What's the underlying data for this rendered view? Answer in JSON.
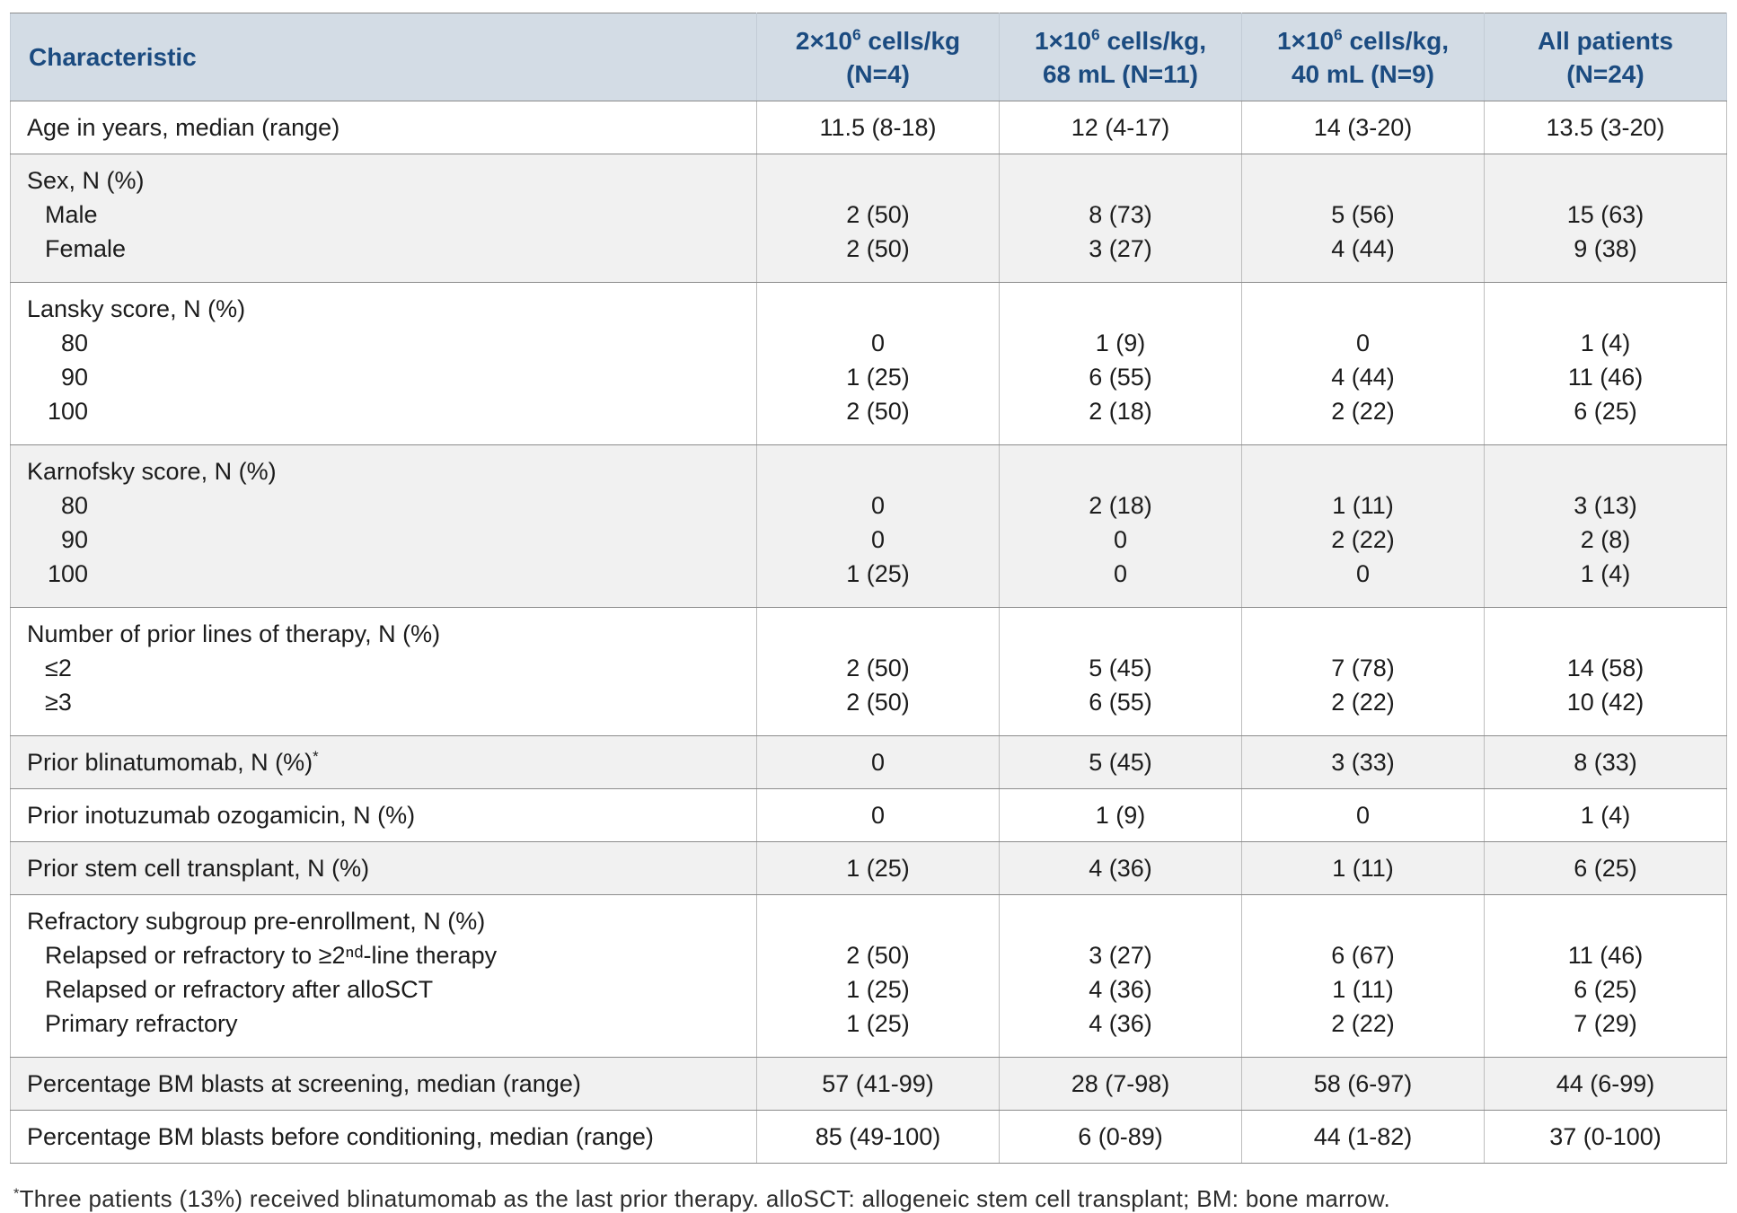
{
  "colors": {
    "header_bg": "#d3dce5",
    "header_text": "#1b4b80",
    "shaded_row_bg": "#f1f1f1",
    "border_dark": "#8c8c8c",
    "border_light": "#bdbdbd"
  },
  "table": {
    "header": {
      "characteristic": "Characteristic",
      "columns": [
        {
          "base": "2×10",
          "sup": "6",
          "rest": " cells/kg",
          "line2": "(N=4)"
        },
        {
          "base": "1×10",
          "sup": "6",
          "rest": " cells/kg,",
          "line2": "68 mL (N=11)"
        },
        {
          "base": "1×10",
          "sup": "6",
          "rest": " cells/kg,",
          "line2": "40 mL (N=9)"
        },
        {
          "base": "All patients",
          "sup": "",
          "rest": "",
          "line2": "(N=24)"
        }
      ]
    },
    "rows": [
      {
        "label": "Age in years, median (range)",
        "shaded": false,
        "values": [
          "11.5 (8-18)",
          "12 (4-17)",
          "14 (3-20)",
          "13.5 (3-20)"
        ]
      },
      {
        "label": "Sex, N (%)",
        "shaded": true,
        "sub": [
          {
            "label": "Male",
            "values": [
              "2 (50)",
              "8 (73)",
              "5 (56)",
              "15 (63)"
            ]
          },
          {
            "label": "Female",
            "values": [
              "2 (50)",
              "3 (27)",
              "4 (44)",
              "9 (38)"
            ]
          }
        ]
      },
      {
        "label": "Lansky score, N (%)",
        "shaded": false,
        "sub": [
          {
            "label": "80",
            "values": [
              "0",
              "1 (9)",
              "0",
              "1 (4)"
            ]
          },
          {
            "label": "90",
            "values": [
              "1 (25)",
              "6 (55)",
              "4 (44)",
              "11 (46)"
            ]
          },
          {
            "label": "100",
            "values": [
              "2 (50)",
              "2 (18)",
              "2 (22)",
              "6 (25)"
            ]
          }
        ]
      },
      {
        "label": "Karnofsky score, N (%)",
        "shaded": true,
        "sub": [
          {
            "label": "80",
            "values": [
              "0",
              "2 (18)",
              "1 (11)",
              "3 (13)"
            ]
          },
          {
            "label": "90",
            "values": [
              "0",
              "0",
              "2 (22)",
              "2 (8)"
            ]
          },
          {
            "label": "100",
            "values": [
              "1 (25)",
              "0",
              "0",
              "1 (4)"
            ]
          }
        ]
      },
      {
        "label": "Number of prior lines of therapy, N (%)",
        "shaded": false,
        "sub": [
          {
            "label": "≤2",
            "values": [
              "2 (50)",
              "5 (45)",
              "7 (78)",
              "14 (58)"
            ]
          },
          {
            "label": "≥3",
            "values": [
              "2 (50)",
              "6 (55)",
              "2 (22)",
              "10 (42)"
            ]
          }
        ]
      },
      {
        "label": "Prior blinatumomab, N (%)",
        "label_sup": "*",
        "shaded": true,
        "values": [
          "0",
          "5 (45)",
          "3 (33)",
          "8 (33)"
        ]
      },
      {
        "label": "Prior inotuzumab ozogamicin, N (%)",
        "shaded": false,
        "values": [
          "0",
          "1 (9)",
          "0",
          "1 (4)"
        ]
      },
      {
        "label": "Prior stem cell transplant, N (%)",
        "shaded": true,
        "values": [
          "1 (25)",
          "4 (36)",
          "1 (11)",
          "6 (25)"
        ]
      },
      {
        "label": "Refractory subgroup pre-enrollment, N (%)",
        "shaded": false,
        "sub": [
          {
            "label": "Relapsed or refractory to ≥2ⁿᵈ-line therapy",
            "values": [
              "2 (50)",
              "3 (27)",
              "6 (67)",
              "11 (46)"
            ]
          },
          {
            "label": "Relapsed or refractory after alloSCT",
            "values": [
              "1 (25)",
              "4 (36)",
              "1 (11)",
              "6 (25)"
            ]
          },
          {
            "label": "Primary refractory",
            "values": [
              "1 (25)",
              "4 (36)",
              "2 (22)",
              "7 (29)"
            ]
          }
        ]
      },
      {
        "label": "Percentage BM blasts at screening, median (range)",
        "shaded": true,
        "values": [
          "57 (41-99)",
          "28 (7-98)",
          "58 (6-97)",
          "44 (6-99)"
        ]
      },
      {
        "label": "Percentage BM blasts before conditioning, median (range)",
        "shaded": false,
        "values": [
          "85 (49-100)",
          "6 (0-89)",
          "44 (1-82)",
          "37 (0-100)"
        ]
      }
    ]
  },
  "footnote": {
    "sup": "*",
    "text": "Three patients (13%) received blinatumomab as the last prior therapy. alloSCT: allogeneic stem cell transplant; BM: bone marrow."
  }
}
